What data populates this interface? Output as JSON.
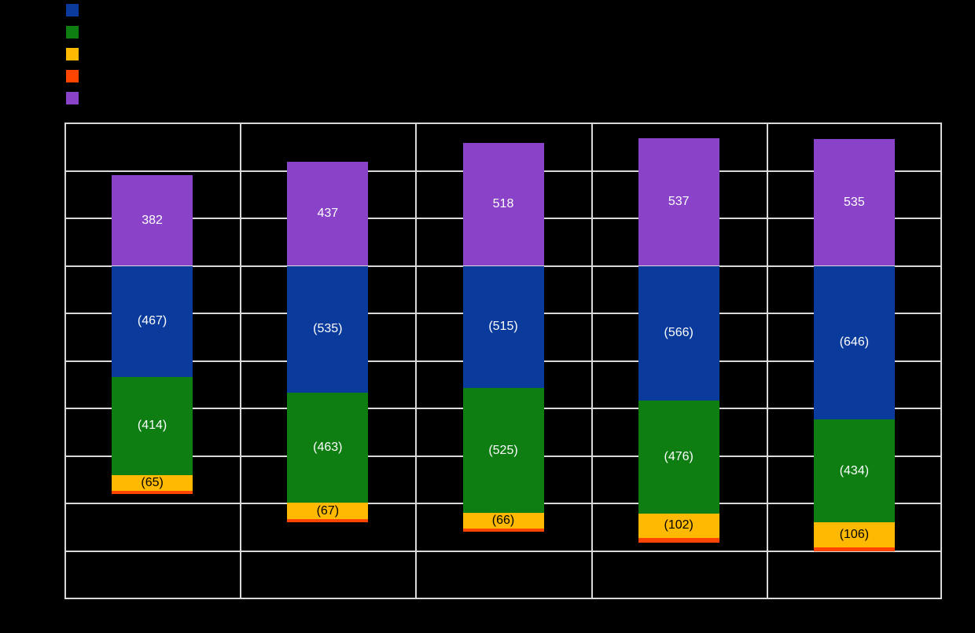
{
  "background_color": "#000000",
  "gridline_color": "#D9D9D9",
  "chart_data": {
    "type": "bar",
    "stacked": true,
    "orientation": "vertical",
    "title": "",
    "xlabel": "",
    "ylabel": "",
    "categories": [
      "",
      "",
      "",
      "",
      ""
    ],
    "axis_tick_labels_visible": false,
    "ylim": [
      -1400,
      600
    ],
    "y_grid_step": 200,
    "grid": true,
    "legend_position": "top-left",
    "series": [
      {
        "name": "",
        "key": "blue",
        "color": "#0A3B9C",
        "direction": "negative",
        "values": [
          467,
          535,
          515,
          566,
          646
        ],
        "data_labels": [
          "(467)",
          "(535)",
          "(515)",
          "(566)",
          "(646)"
        ],
        "label_color": "#FFFFFF"
      },
      {
        "name": "",
        "key": "green",
        "color": "#0E7D12",
        "direction": "negative",
        "values": [
          414,
          463,
          525,
          476,
          434
        ],
        "data_labels": [
          "(414)",
          "(463)",
          "(525)",
          "(476)",
          "(434)"
        ],
        "label_color": "#FFFFFF"
      },
      {
        "name": "",
        "key": "orange",
        "color": "#FFB900",
        "direction": "negative",
        "values": [
          65,
          67,
          66,
          102,
          106
        ],
        "data_labels": [
          "(65)",
          "(67)",
          "(66)",
          "(102)",
          "(106)"
        ],
        "label_color": "#000000"
      },
      {
        "name": "",
        "key": "red",
        "color": "#FF4500",
        "direction": "negative",
        "values": [
          13,
          13,
          13,
          20,
          17
        ],
        "values_estimated_from_pixels": true,
        "data_labels": [
          "",
          "",
          "",
          "",
          ""
        ],
        "label_color": "#000000"
      },
      {
        "name": "",
        "key": "purple",
        "color": "#8A42C8",
        "direction": "positive",
        "values": [
          382,
          437,
          518,
          537,
          535
        ],
        "data_labels": [
          "382",
          "437",
          "518",
          "537",
          "535"
        ],
        "label_color": "#FFFFFF"
      }
    ]
  }
}
